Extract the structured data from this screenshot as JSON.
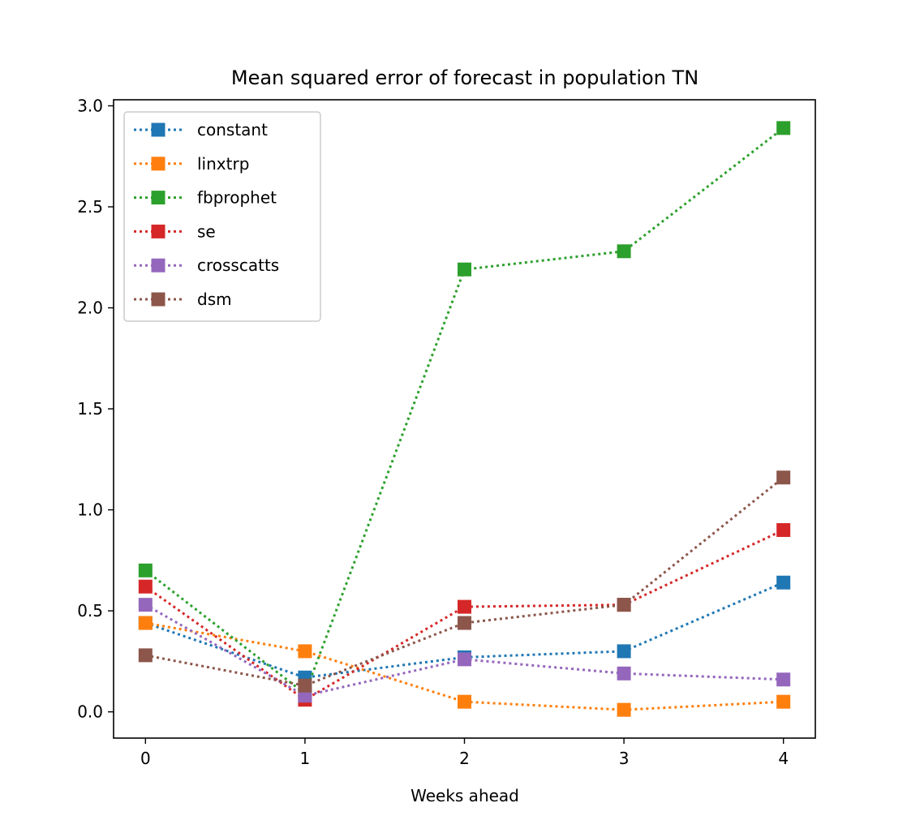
{
  "chart_data": {
    "type": "line",
    "title": "Mean squared error of forecast in population TN",
    "xlabel": "Weeks ahead",
    "ylabel": "",
    "x": [
      0,
      1,
      2,
      3,
      4
    ],
    "xticks": [
      "0",
      "1",
      "2",
      "3",
      "4"
    ],
    "yticks": [
      "0.0",
      "0.5",
      "1.0",
      "1.5",
      "2.0",
      "2.5",
      "3.0"
    ],
    "xlim": [
      -0.2,
      4.2
    ],
    "ylim": [
      -0.13,
      3.03
    ],
    "grid": false,
    "legend_position": "top-left",
    "line_style": "dotted",
    "marker": "square",
    "series": [
      {
        "name": "constant",
        "color": "#1f77b4",
        "values": [
          0.44,
          0.17,
          0.27,
          0.3,
          0.64
        ]
      },
      {
        "name": "linxtrp",
        "color": "#ff7f0e",
        "values": [
          0.44,
          0.3,
          0.05,
          0.01,
          0.05
        ]
      },
      {
        "name": "fbprophet",
        "color": "#2ca02c",
        "values": [
          0.7,
          0.09,
          2.19,
          2.28,
          2.89
        ]
      },
      {
        "name": "se",
        "color": "#d62728",
        "values": [
          0.62,
          0.06,
          0.52,
          0.53,
          0.9
        ]
      },
      {
        "name": "crosscatts",
        "color": "#9467bd",
        "values": [
          0.53,
          0.08,
          0.26,
          0.19,
          0.16
        ]
      },
      {
        "name": "dsm",
        "color": "#8c564b",
        "values": [
          0.28,
          0.13,
          0.44,
          0.53,
          1.16
        ]
      }
    ]
  }
}
